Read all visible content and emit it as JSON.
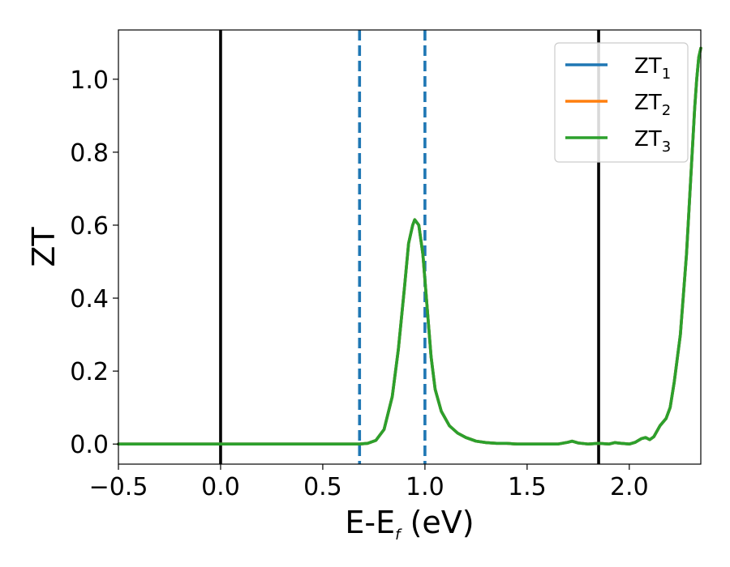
{
  "chart_data": {
    "type": "line",
    "title": "",
    "xlabel": "E-E",
    "xlabel_sub": "f",
    "xlabel_unit": " (eV)",
    "ylabel": "ZT",
    "xlim": [
      -0.5,
      2.35
    ],
    "ylim": [
      -0.055,
      1.135
    ],
    "xticks": [
      -0.5,
      0.0,
      0.5,
      1.0,
      1.5,
      2.0
    ],
    "xtick_labels": [
      "−0.5",
      "0.0",
      "0.5",
      "1.0",
      "1.5",
      "2.0"
    ],
    "yticks": [
      0.0,
      0.2,
      0.4,
      0.6,
      0.8,
      1.0
    ],
    "ytick_labels": [
      "0.0",
      "0.2",
      "0.4",
      "0.6",
      "0.8",
      "1.0"
    ],
    "grid": false,
    "legend_position": "top-right",
    "vlines": [
      {
        "x": 0.0,
        "style": "solid",
        "color": "#000000"
      },
      {
        "x": 0.68,
        "style": "dashed",
        "color": "#1f77b4"
      },
      {
        "x": 1.0,
        "style": "dashed",
        "color": "#1f77b4"
      },
      {
        "x": 1.85,
        "style": "solid",
        "color": "#000000"
      }
    ],
    "x": [
      -0.5,
      0.0,
      0.5,
      0.68,
      0.72,
      0.76,
      0.8,
      0.84,
      0.87,
      0.9,
      0.92,
      0.94,
      0.95,
      0.97,
      0.99,
      1.01,
      1.03,
      1.05,
      1.08,
      1.12,
      1.16,
      1.2,
      1.25,
      1.3,
      1.35,
      1.4,
      1.45,
      1.5,
      1.55,
      1.6,
      1.65,
      1.7,
      1.72,
      1.75,
      1.8,
      1.85,
      1.9,
      1.93,
      1.96,
      2.0,
      2.03,
      2.06,
      2.08,
      2.1,
      2.12,
      2.15,
      2.18,
      2.2,
      2.22,
      2.25,
      2.28,
      2.3,
      2.32,
      2.33,
      2.34,
      2.35
    ],
    "series": [
      {
        "name_main": "ZT",
        "name_sub": "1",
        "color": "#1f77b4",
        "values": [
          0.0,
          0.0,
          0.0,
          0.0,
          0.002,
          0.01,
          0.04,
          0.13,
          0.26,
          0.43,
          0.55,
          0.6,
          0.615,
          0.6,
          0.52,
          0.38,
          0.24,
          0.15,
          0.09,
          0.05,
          0.03,
          0.018,
          0.008,
          0.004,
          0.002,
          0.002,
          0.0,
          0.0,
          0.0,
          0.0,
          0.0,
          0.005,
          0.008,
          0.003,
          0.0,
          0.002,
          0.0,
          0.004,
          0.002,
          0.0,
          0.005,
          0.015,
          0.018,
          0.012,
          0.02,
          0.05,
          0.07,
          0.1,
          0.17,
          0.3,
          0.52,
          0.72,
          0.92,
          1.0,
          1.06,
          1.085
        ]
      },
      {
        "name_main": "ZT",
        "name_sub": "2",
        "color": "#ff7f0e",
        "values": [
          0.0,
          0.0,
          0.0,
          0.0,
          0.002,
          0.01,
          0.04,
          0.13,
          0.26,
          0.43,
          0.55,
          0.6,
          0.615,
          0.6,
          0.52,
          0.38,
          0.24,
          0.15,
          0.09,
          0.05,
          0.03,
          0.018,
          0.008,
          0.004,
          0.002,
          0.002,
          0.0,
          0.0,
          0.0,
          0.0,
          0.0,
          0.005,
          0.008,
          0.003,
          0.0,
          0.002,
          0.0,
          0.004,
          0.002,
          0.0,
          0.005,
          0.015,
          0.018,
          0.012,
          0.02,
          0.05,
          0.07,
          0.1,
          0.17,
          0.3,
          0.52,
          0.72,
          0.92,
          1.0,
          1.06,
          1.085
        ]
      },
      {
        "name_main": "ZT",
        "name_sub": "3",
        "color": "#2ca02c",
        "values": [
          0.0,
          0.0,
          0.0,
          0.0,
          0.002,
          0.01,
          0.04,
          0.13,
          0.26,
          0.43,
          0.55,
          0.6,
          0.615,
          0.6,
          0.52,
          0.38,
          0.24,
          0.15,
          0.09,
          0.05,
          0.03,
          0.018,
          0.008,
          0.004,
          0.002,
          0.002,
          0.0,
          0.0,
          0.0,
          0.0,
          0.0,
          0.005,
          0.008,
          0.003,
          0.0,
          0.002,
          0.0,
          0.004,
          0.002,
          0.0,
          0.005,
          0.015,
          0.018,
          0.012,
          0.02,
          0.05,
          0.07,
          0.1,
          0.17,
          0.3,
          0.52,
          0.72,
          0.92,
          1.0,
          1.06,
          1.085
        ]
      }
    ]
  }
}
